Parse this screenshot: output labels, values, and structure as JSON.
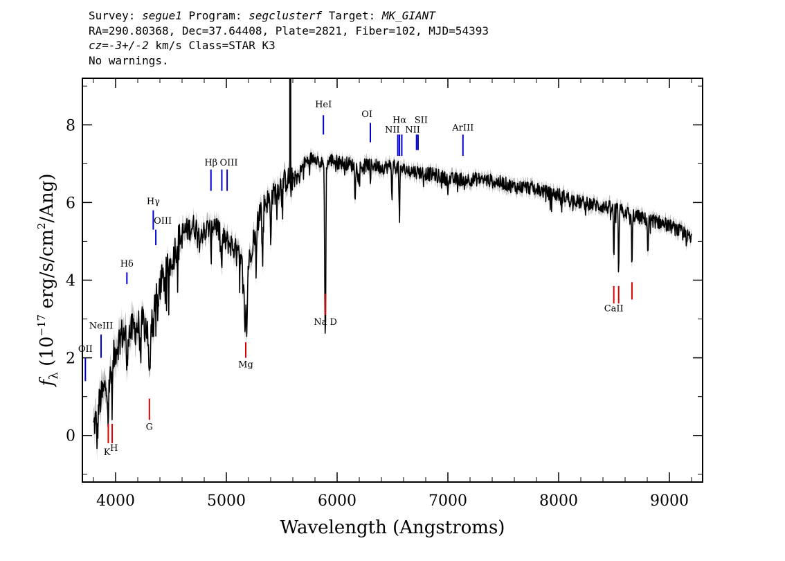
{
  "header": {
    "line1": {
      "survey_label": "Survey: ",
      "survey": "segue1",
      "program_label": " Program: ",
      "program": "segclusterf",
      "target_label": " Target: ",
      "target": "MK_GIANT"
    },
    "line2": "RA=290.80368, Dec=37.64408, Plate=2821, Fiber=102, MJD=54393",
    "line3": {
      "cz": "cz=-3+/-2",
      "rest": " km/s Class=STAR K3"
    },
    "line4": "No warnings."
  },
  "chart_data": {
    "type": "line",
    "title": "",
    "xlabel": "Wavelength (Angstroms)",
    "ylabel_parts": {
      "f": "f",
      "sub": "λ",
      "a": " (10",
      "exp1": "−17",
      "b": " erg/s/cm",
      "exp2": "2",
      "c": "/Ang)"
    },
    "xlim": [
      3700,
      9300
    ],
    "ylim": [
      -1.2,
      9.2
    ],
    "x_ticks": [
      4000,
      5000,
      6000,
      7000,
      8000,
      9000
    ],
    "x_tick_labels": [
      "4000",
      "5000",
      "6000",
      "7000",
      "8000",
      "9000"
    ],
    "y_ticks": [
      0,
      2,
      4,
      6,
      8
    ],
    "y_tick_labels": [
      "0",
      "2",
      "4",
      "6",
      "8"
    ],
    "colors": {
      "flux": "#000000",
      "error": "#b8b8b8",
      "emission": "#0000cc",
      "absorption": "#dd0000"
    },
    "spectrum_continuum": [
      [
        3800,
        0.2
      ],
      [
        3850,
        0.8
      ],
      [
        3900,
        1.2
      ],
      [
        3950,
        1.6
      ],
      [
        4000,
        2.2
      ],
      [
        4050,
        2.6
      ],
      [
        4100,
        2.6
      ],
      [
        4150,
        2.7
      ],
      [
        4200,
        2.8
      ],
      [
        4250,
        2.9
      ],
      [
        4300,
        2.7
      ],
      [
        4350,
        3.5
      ],
      [
        4400,
        3.9
      ],
      [
        4450,
        4.1
      ],
      [
        4500,
        4.5
      ],
      [
        4550,
        4.9
      ],
      [
        4600,
        5.2
      ],
      [
        4650,
        5.3
      ],
      [
        4700,
        5.4
      ],
      [
        4750,
        5.3
      ],
      [
        4800,
        5.2
      ],
      [
        4850,
        5.4
      ],
      [
        4900,
        5.5
      ],
      [
        4950,
        5.1
      ],
      [
        5000,
        5.0
      ],
      [
        5050,
        4.9
      ],
      [
        5100,
        4.7
      ],
      [
        5150,
        4.3
      ],
      [
        5200,
        4.4
      ],
      [
        5250,
        5.2
      ],
      [
        5300,
        5.8
      ],
      [
        5350,
        6.0
      ],
      [
        5400,
        6.1
      ],
      [
        5450,
        6.3
      ],
      [
        5500,
        6.5
      ],
      [
        5550,
        6.6
      ],
      [
        5600,
        6.6
      ],
      [
        5650,
        6.7
      ],
      [
        5700,
        7.0
      ],
      [
        5750,
        7.1
      ],
      [
        5800,
        7.2
      ],
      [
        5850,
        7.0
      ],
      [
        5900,
        7.0
      ],
      [
        5950,
        7.1
      ],
      [
        6000,
        7.05
      ],
      [
        6100,
        7.0
      ],
      [
        6200,
        6.9
      ],
      [
        6300,
        7.0
      ],
      [
        6400,
        6.9
      ],
      [
        6500,
        6.95
      ],
      [
        6600,
        6.85
      ],
      [
        6700,
        6.8
      ],
      [
        6800,
        6.75
      ],
      [
        6900,
        6.7
      ],
      [
        7000,
        6.6
      ],
      [
        7100,
        6.6
      ],
      [
        7200,
        6.6
      ],
      [
        7300,
        6.6
      ],
      [
        7400,
        6.55
      ],
      [
        7500,
        6.5
      ],
      [
        7600,
        6.4
      ],
      [
        7700,
        6.4
      ],
      [
        7800,
        6.35
      ],
      [
        7900,
        6.25
      ],
      [
        8000,
        6.2
      ],
      [
        8100,
        6.1
      ],
      [
        8200,
        6.0
      ],
      [
        8300,
        5.95
      ],
      [
        8400,
        5.9
      ],
      [
        8500,
        5.85
      ],
      [
        8600,
        5.75
      ],
      [
        8700,
        5.65
      ],
      [
        8800,
        5.55
      ],
      [
        8900,
        5.5
      ],
      [
        9000,
        5.4
      ],
      [
        9100,
        5.25
      ],
      [
        9200,
        5.05
      ]
    ],
    "spectrum_features": [
      {
        "wave": 3834,
        "depth": 0.7,
        "width": 8
      },
      {
        "wave": 3934,
        "depth": 1.1,
        "width": 6
      },
      {
        "wave": 3969,
        "depth": 1.0,
        "width": 6
      },
      {
        "wave": 4102,
        "depth": 1.0,
        "width": 6
      },
      {
        "wave": 4227,
        "depth": 0.9,
        "width": 6
      },
      {
        "wave": 4305,
        "depth": 1.4,
        "width": 10
      },
      {
        "wave": 4340,
        "depth": 0.8,
        "width": 6
      },
      {
        "wave": 4383,
        "depth": 0.9,
        "width": 6
      },
      {
        "wave": 4861,
        "depth": 0.9,
        "width": 6
      },
      {
        "wave": 4957,
        "depth": 0.8,
        "width": 6
      },
      {
        "wave": 5167,
        "depth": 1.7,
        "width": 8
      },
      {
        "wave": 5184,
        "depth": 1.8,
        "width": 7
      },
      {
        "wave": 5270,
        "depth": 1.2,
        "width": 6
      },
      {
        "wave": 5328,
        "depth": 1.3,
        "width": 6
      },
      {
        "wave": 5400,
        "depth": 1.0,
        "width": 6
      },
      {
        "wave": 5890,
        "depth": 3.3,
        "width": 5
      },
      {
        "wave": 5896,
        "depth": 3.1,
        "width": 5
      },
      {
        "wave": 6162,
        "depth": 0.8,
        "width": 5
      },
      {
        "wave": 6300,
        "depth": 0.6,
        "width": 5
      },
      {
        "wave": 6495,
        "depth": 0.8,
        "width": 5
      },
      {
        "wave": 6563,
        "depth": 1.4,
        "width": 5
      },
      {
        "wave": 8498,
        "depth": 1.4,
        "width": 5
      },
      {
        "wave": 8542,
        "depth": 1.7,
        "width": 5
      },
      {
        "wave": 8662,
        "depth": 1.5,
        "width": 5
      },
      {
        "wave": 8806,
        "depth": 0.9,
        "width": 5
      }
    ],
    "spectrum_spike": {
      "wave": 5577,
      "from": 6.6,
      "to": 9.2
    },
    "emission_lines": [
      {
        "label": "OII",
        "wave": 3727,
        "y1": 1.4,
        "y2": 2.0,
        "ly": 2.15,
        "anchor": "middle"
      },
      {
        "label": "NeIII",
        "wave": 3869,
        "y1": 2.0,
        "y2": 2.6,
        "ly": 2.75,
        "anchor": "middle"
      },
      {
        "label": "Hδ",
        "wave": 4102,
        "y1": 3.9,
        "y2": 4.2,
        "ly": 4.35,
        "anchor": "middle"
      },
      {
        "label": "Hγ",
        "wave": 4340,
        "y1": 5.3,
        "y2": 5.8,
        "ly": 5.95,
        "anchor": "middle"
      },
      {
        "label": "OIII",
        "wave": 4363,
        "y1": 4.9,
        "y2": 5.3,
        "ly": 5.45,
        "anchor": "start"
      },
      {
        "label": "Hβ",
        "wave": 4861,
        "y1": 6.3,
        "y2": 6.85,
        "ly": 6.95,
        "anchor": "middle"
      },
      {
        "label": "OIII",
        "wave": 4959,
        "y1": 6.3,
        "y2": 6.85,
        "ly": 6.95,
        "anchor": "start"
      },
      {
        "label": "",
        "wave": 5007,
        "y1": 6.3,
        "y2": 6.85,
        "ly": 6.95,
        "anchor": "start"
      },
      {
        "label": "HeI",
        "wave": 5876,
        "y1": 7.75,
        "y2": 8.25,
        "ly": 8.45,
        "anchor": "middle"
      },
      {
        "label": "OI",
        "wave": 6300,
        "y1": 7.55,
        "y2": 8.05,
        "ly": 8.2,
        "anchor": "end"
      },
      {
        "label": "NII",
        "wave": 6548,
        "y1": 7.2,
        "y2": 7.75,
        "ly": 7.8,
        "anchor": "end"
      },
      {
        "label": "Hα",
        "wave": 6563,
        "y1": 7.2,
        "y2": 7.75,
        "ly": 8.05,
        "anchor": "middle"
      },
      {
        "label": "",
        "wave": 6584,
        "y1": 7.2,
        "y2": 7.75,
        "ly": 7.8,
        "anchor": "start"
      },
      {
        "label": "SII",
        "wave": 6717,
        "y1": 7.35,
        "y2": 7.75,
        "ly": 8.05,
        "anchor": "start"
      },
      {
        "label": "NII",
        "wave": 6731,
        "y1": 7.35,
        "y2": 7.75,
        "ly": 7.8,
        "anchor": "end"
      },
      {
        "label": "ArIII",
        "wave": 7136,
        "y1": 7.2,
        "y2": 7.75,
        "ly": 7.85,
        "anchor": "middle"
      }
    ],
    "absorption_lines": [
      {
        "label": "K",
        "wave": 3934,
        "y1": -0.2,
        "y2": 0.3,
        "ly": -0.5,
        "anchor": "end"
      },
      {
        "label": "H",
        "wave": 3969,
        "y1": -0.2,
        "y2": 0.3,
        "ly": -0.4,
        "anchor": "start"
      },
      {
        "label": "G",
        "wave": 4305,
        "y1": 0.4,
        "y2": 0.95,
        "ly": 0.15,
        "anchor": "middle"
      },
      {
        "label": "Mg",
        "wave": 5175,
        "y1": 2.0,
        "y2": 2.4,
        "ly": 1.75,
        "anchor": "middle"
      },
      {
        "label": "Na D",
        "wave": 5894,
        "y1": 3.1,
        "y2": 3.65,
        "ly": 2.85,
        "anchor": "middle"
      },
      {
        "label": "CaII",
        "wave": 8498,
        "y1": 3.4,
        "y2": 3.85,
        "ly": 3.2,
        "anchor": "middle"
      },
      {
        "label": "",
        "wave": 8542,
        "y1": 3.4,
        "y2": 3.85,
        "ly": 3.2,
        "anchor": "middle"
      },
      {
        "label": "",
        "wave": 8662,
        "y1": 3.5,
        "y2": 3.95,
        "ly": 3.2,
        "anchor": "middle"
      }
    ]
  }
}
